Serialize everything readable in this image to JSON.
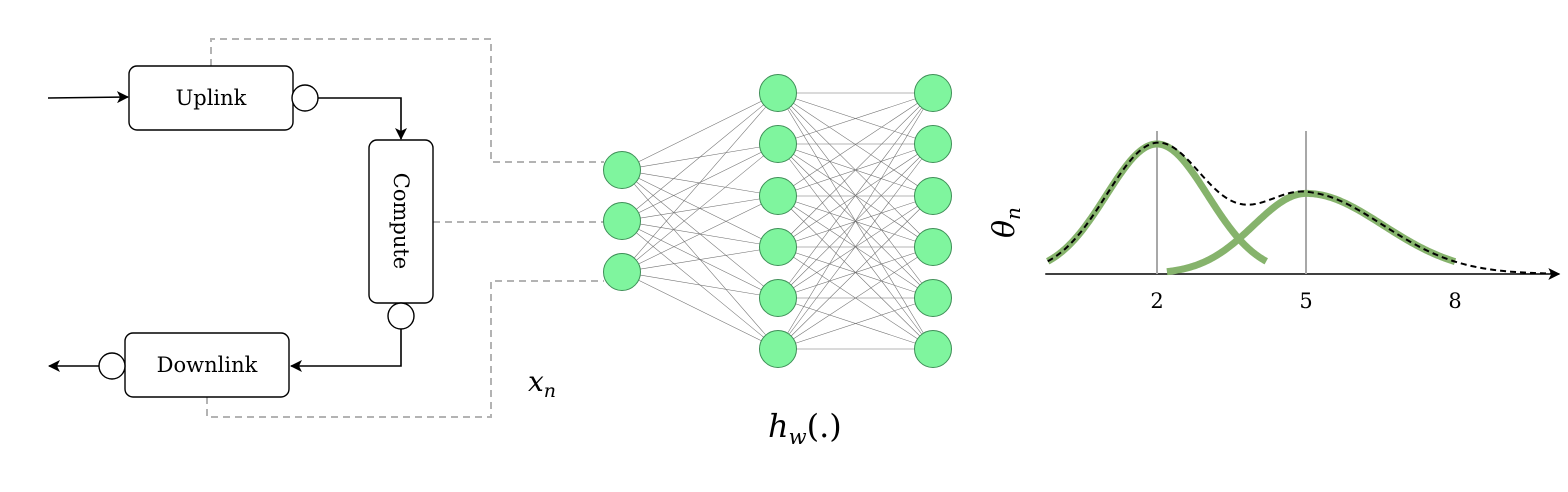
{
  "blocks": {
    "uplink": "Uplink",
    "compute": "Compute",
    "downlink": "Downlink"
  },
  "math": {
    "x_base": "x",
    "x_sub": "n",
    "h_base": "h",
    "h_sub": "w",
    "h_args": "(.)",
    "theta_base": "θ",
    "theta_sub": "n"
  },
  "network": {
    "layers": [
      3,
      6,
      6
    ],
    "node_color": "#7ff59e"
  },
  "chart_data": {
    "type": "line",
    "title": "",
    "xlabel": "",
    "ylabel": "",
    "x_ticks": [
      2,
      5,
      8
    ],
    "xlim": [
      -0.25,
      10.1
    ],
    "markers": [
      2,
      5
    ],
    "series": [
      {
        "center": 2,
        "peak": 1.0,
        "x_range": [
          -0.2,
          4.2
        ],
        "color": "#86b36c"
      },
      {
        "center": 5,
        "peak": 0.62,
        "x_range": [
          2.2,
          8.0
        ],
        "color": "#86b36c"
      }
    ],
    "mixture": {
      "x_range": [
        -0.2,
        10.0
      ],
      "style": "dashed",
      "color": "#000000"
    }
  }
}
